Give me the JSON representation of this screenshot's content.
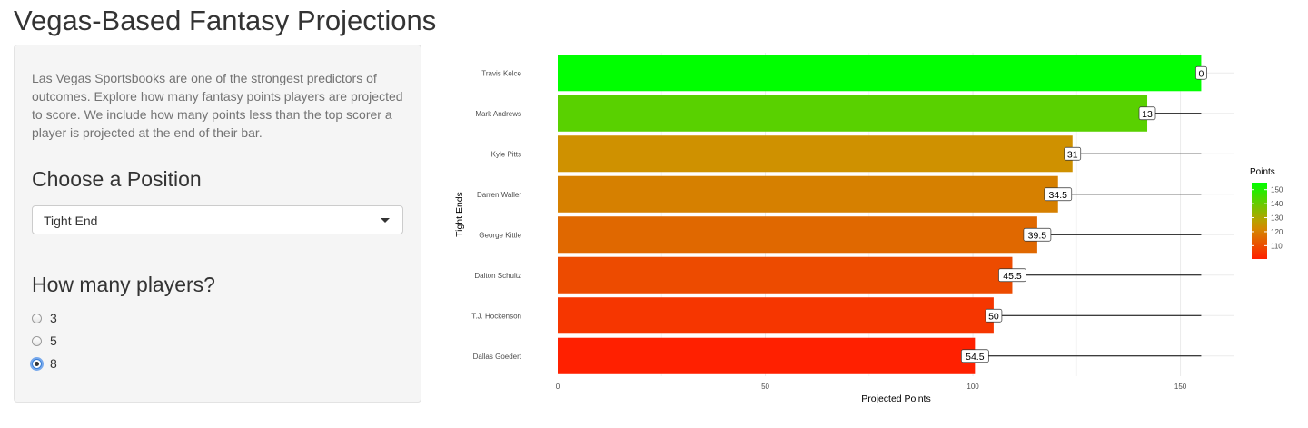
{
  "page": {
    "title": "Vegas-Based Fantasy Projections"
  },
  "sidebar": {
    "intro_text": "Las Vegas Sportsbooks are one of the strongest predictors of outcomes. Explore how many fantasy points players are projected to score. We include how many points less than the top scorer a player is projected at the end of their bar.",
    "position_heading": "Choose a Position",
    "position_select": {
      "value": "Tight End",
      "icon": "chevron-down-icon"
    },
    "players_heading": "How many players?",
    "player_options": [
      {
        "label": "3",
        "selected": false
      },
      {
        "label": "5",
        "selected": false
      },
      {
        "label": "8",
        "selected": true
      }
    ]
  },
  "chart_data": {
    "type": "bar",
    "orientation": "horizontal",
    "title": "",
    "xlabel": "Projected Points",
    "ylabel": "Tight Ends",
    "xlim": [
      0,
      163
    ],
    "xticks": [
      0,
      50,
      100,
      150
    ],
    "categories": [
      "Travis Kelce",
      "Mark Andrews",
      "Kyle Pitts",
      "Darren Waller",
      "George Kittle",
      "Dalton Schultz",
      "T.J. Hockenson",
      "Dallas Goedert"
    ],
    "values": [
      155,
      142,
      124,
      120.5,
      115.5,
      109.5,
      105,
      100.5
    ],
    "point_labels": [
      "0",
      "13",
      "31",
      "34.5",
      "39.5",
      "45.5",
      "50",
      "54.5"
    ],
    "top_value": 155,
    "grid": true,
    "legend": {
      "title": "Points",
      "placement": "right",
      "ticks": [
        110,
        120,
        130,
        140,
        150
      ],
      "range": [
        100.5,
        155
      ],
      "color_low": "#ff2000",
      "color_high": "#00ff00"
    }
  }
}
